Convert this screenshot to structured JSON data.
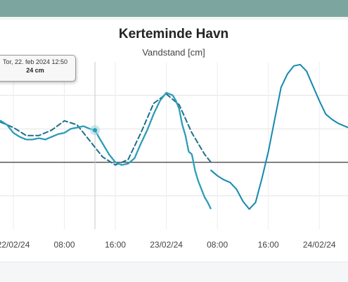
{
  "window": {
    "accent_color": "#7da59f"
  },
  "tooltip": {
    "date": "Tor, 22. feb 2024 12:50",
    "value": "24 cm"
  },
  "chart_data": {
    "type": "line",
    "title": "Kerteminde Havn",
    "subtitle": "Vandstand [cm]",
    "xlabel": "",
    "ylabel": "",
    "x_tick_labels": [
      "22/02/24",
      "08:00",
      "16:00",
      "23/02/24",
      "08:00",
      "16:00",
      "24/02/24"
    ],
    "x_tick_hours": [
      0,
      8,
      16,
      24,
      32,
      40,
      48
    ],
    "xlim_hours": [
      -2.1,
      52.5
    ],
    "ylim": [
      -50,
      75
    ],
    "grid": true,
    "zero_line": true,
    "series": [
      {
        "style": "dashed",
        "color": "#1f6f8b",
        "x": [
          -2,
          0,
          2,
          4,
          6,
          8,
          10,
          12,
          14,
          16,
          18,
          20,
          22,
          24,
          26,
          28,
          30,
          31
        ],
        "y": [
          30,
          26,
          20,
          20,
          24,
          31,
          28,
          16,
          4,
          -2,
          2,
          22,
          44,
          51,
          43,
          22,
          6,
          0
        ]
      },
      {
        "style": "dotted-noisy",
        "color": "#2a9bb8",
        "x": [
          -2,
          -1,
          0,
          1,
          2,
          3,
          4,
          5,
          6,
          7,
          8,
          9,
          10,
          11,
          12,
          12.8,
          13.5,
          14,
          15,
          16,
          17,
          18,
          19,
          20,
          21,
          22,
          23,
          24,
          25,
          25.5,
          26,
          26.5,
          27,
          27.5,
          28,
          28.5,
          29,
          29.5,
          30,
          30.5,
          31
        ],
        "y": [
          31,
          28,
          22,
          19,
          17,
          17,
          18,
          17,
          19,
          21,
          22,
          25,
          26,
          27,
          25,
          24,
          18,
          14,
          6,
          0,
          -2,
          -1,
          3,
          14,
          24,
          36,
          46,
          52,
          50,
          46,
          40,
          28,
          20,
          8,
          6,
          -6,
          -14,
          -20,
          -26,
          -30,
          -35
        ]
      },
      {
        "style": "solid",
        "color": "#1588b0",
        "x": [
          31,
          32,
          33,
          34,
          35,
          36,
          37,
          38,
          39,
          40,
          41,
          42,
          43,
          44,
          45,
          46,
          47,
          48,
          49,
          50,
          51,
          52,
          52.5
        ],
        "y": [
          -6,
          -10,
          -13,
          -15,
          -20,
          -29,
          -35,
          -30,
          -12,
          8,
          32,
          56,
          66,
          72,
          73,
          68,
          57,
          46,
          36,
          32,
          29,
          27,
          26
        ]
      }
    ],
    "highlight": {
      "x": 12.8,
      "y": 24
    }
  }
}
